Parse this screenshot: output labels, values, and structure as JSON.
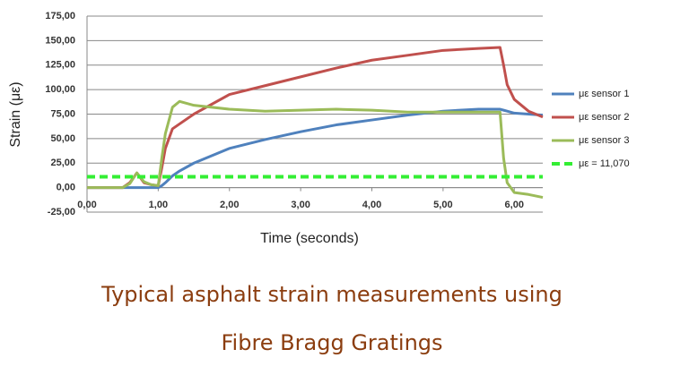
{
  "chart_data": {
    "type": "line",
    "ylabel": "Strain (με)",
    "xlabel": "Time (seconds)",
    "caption": [
      "Typical asphalt strain measurements using",
      "Fibre Bragg Gratings"
    ],
    "x": [
      0,
      0.5,
      0.6,
      0.7,
      0.8,
      0.9,
      1.0,
      1.05,
      1.1,
      1.2,
      1.3,
      1.5,
      2,
      2.5,
      3,
      3.5,
      4,
      4.5,
      5,
      5.5,
      5.8,
      5.85,
      5.9,
      6.0,
      6.2,
      6.4
    ],
    "series": [
      {
        "name": "με sensor 1",
        "color": "#4f81bd",
        "values": [
          0,
          0,
          0,
          0,
          0,
          0,
          0,
          2,
          5,
          12,
          17,
          25,
          40,
          49,
          57,
          64,
          69,
          74,
          78,
          80,
          80,
          79,
          78,
          76,
          75,
          74
        ]
      },
      {
        "name": "με sensor 2",
        "color": "#c0504d",
        "values": [
          0,
          0,
          5,
          15,
          5,
          3,
          2,
          20,
          40,
          60,
          65,
          75,
          95,
          104,
          113,
          122,
          130,
          135,
          140,
          142,
          143,
          125,
          105,
          90,
          78,
          72
        ]
      },
      {
        "name": "με sensor 3",
        "color": "#9bbb59",
        "values": [
          0,
          0,
          4,
          15,
          6,
          3,
          2,
          30,
          55,
          82,
          88,
          84,
          80,
          78,
          79,
          80,
          79,
          77,
          77,
          77,
          77,
          30,
          5,
          -5,
          -7,
          -10
        ]
      },
      {
        "name": "με = 11,070",
        "color": "#33ee33",
        "dashed": true,
        "values": [
          11.07,
          11.07,
          11.07,
          11.07,
          11.07,
          11.07,
          11.07,
          11.07,
          11.07,
          11.07,
          11.07,
          11.07,
          11.07,
          11.07,
          11.07,
          11.07,
          11.07,
          11.07,
          11.07,
          11.07,
          11.07,
          11.07,
          11.07,
          11.07,
          11.07,
          11.07
        ]
      }
    ],
    "xlim": [
      0,
      6.4
    ],
    "xticks": [
      {
        "value": 0,
        "label": "0,00"
      },
      {
        "value": 1,
        "label": "1,00"
      },
      {
        "value": 2,
        "label": "2,00"
      },
      {
        "value": 3,
        "label": "3,00"
      },
      {
        "value": 4,
        "label": "4,00"
      },
      {
        "value": 5,
        "label": "5,00"
      },
      {
        "value": 6,
        "label": "6,00"
      }
    ],
    "ylim": [
      -25,
      175
    ],
    "yticks": [
      {
        "value": -25,
        "label": "-25,00"
      },
      {
        "value": 0,
        "label": "0,00"
      },
      {
        "value": 25,
        "label": "25,00"
      },
      {
        "value": 50,
        "label": "50,00"
      },
      {
        "value": 75,
        "label": "75,00"
      },
      {
        "value": 100,
        "label": "100,00"
      },
      {
        "value": 125,
        "label": "125,00"
      },
      {
        "value": 150,
        "label": "150,00"
      },
      {
        "value": 175,
        "label": "175,00"
      }
    ],
    "grid": true,
    "legend": "right"
  }
}
